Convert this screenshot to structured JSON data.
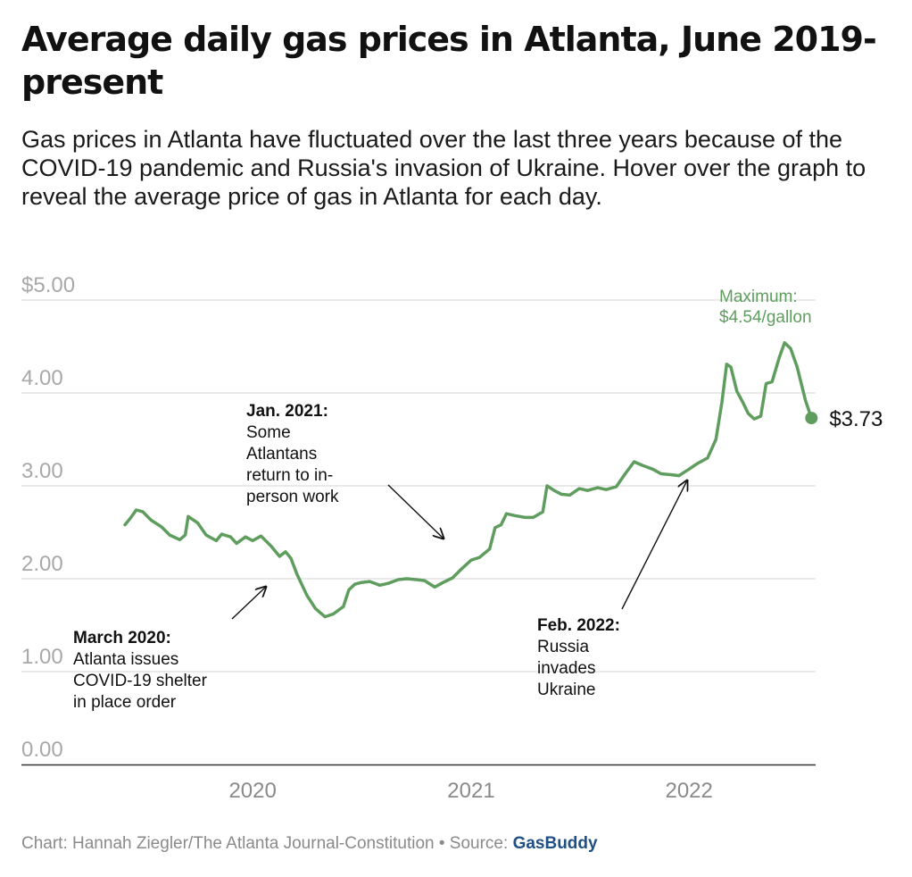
{
  "title": "Average daily gas prices in Atlanta, June 2019-present",
  "subtitle": "Gas prices in Atlanta have fluctuated over the last three years because of the COVID-19 pandemic and Russia's invasion of Ukraine. Hover over the graph to reveal the average price of gas in Atlanta for each day.",
  "footer": {
    "credit": "Chart: Hannah Ziegler/The Atlanta Journal-Constitution • Source: ",
    "source_link": "GasBuddy"
  },
  "colors": {
    "line": "#5f9d5f",
    "grid": "#e3e3e3",
    "axis": "#333333"
  },
  "chart_data": {
    "type": "line",
    "ylim": [
      0,
      5
    ],
    "yticks": [
      {
        "value": 5,
        "label": "$5.00"
      },
      {
        "value": 4,
        "label": "4.00"
      },
      {
        "value": 3,
        "label": "3.00"
      },
      {
        "value": 2,
        "label": "2.00"
      },
      {
        "value": 1,
        "label": "1.00"
      },
      {
        "value": 0,
        "label": "0.00"
      }
    ],
    "xlim": [
      "2019-06-01",
      "2022-08-01"
    ],
    "xticks": [
      {
        "date": "2020-01-01",
        "label": "2020"
      },
      {
        "date": "2021-01-01",
        "label": "2021"
      },
      {
        "date": "2022-01-01",
        "label": "2022"
      }
    ],
    "series": [
      {
        "values": [
          [
            "2019-06-01",
            2.58
          ],
          [
            "2019-06-10",
            2.65
          ],
          [
            "2019-06-20",
            2.74
          ],
          [
            "2019-07-01",
            2.72
          ],
          [
            "2019-07-15",
            2.63
          ],
          [
            "2019-08-01",
            2.56
          ],
          [
            "2019-08-15",
            2.47
          ],
          [
            "2019-09-01",
            2.42
          ],
          [
            "2019-09-10",
            2.47
          ],
          [
            "2019-09-15",
            2.67
          ],
          [
            "2019-10-01",
            2.6
          ],
          [
            "2019-10-15",
            2.47
          ],
          [
            "2019-11-01",
            2.41
          ],
          [
            "2019-11-10",
            2.48
          ],
          [
            "2019-11-25",
            2.45
          ],
          [
            "2019-12-05",
            2.38
          ],
          [
            "2019-12-20",
            2.45
          ],
          [
            "2020-01-01",
            2.41
          ],
          [
            "2020-01-15",
            2.46
          ],
          [
            "2020-02-01",
            2.35
          ],
          [
            "2020-02-15",
            2.24
          ],
          [
            "2020-02-25",
            2.29
          ],
          [
            "2020-03-05",
            2.22
          ],
          [
            "2020-03-15",
            2.05
          ],
          [
            "2020-04-01",
            1.82
          ],
          [
            "2020-04-15",
            1.68
          ],
          [
            "2020-05-01",
            1.59
          ],
          [
            "2020-05-15",
            1.62
          ],
          [
            "2020-06-01",
            1.7
          ],
          [
            "2020-06-10",
            1.88
          ],
          [
            "2020-06-20",
            1.94
          ],
          [
            "2020-07-01",
            1.96
          ],
          [
            "2020-07-15",
            1.97
          ],
          [
            "2020-08-01",
            1.93
          ],
          [
            "2020-08-15",
            1.95
          ],
          [
            "2020-09-01",
            1.99
          ],
          [
            "2020-09-15",
            2.0
          ],
          [
            "2020-10-01",
            1.99
          ],
          [
            "2020-10-15",
            1.98
          ],
          [
            "2020-11-01",
            1.91
          ],
          [
            "2020-11-15",
            1.96
          ],
          [
            "2020-12-01",
            2.01
          ],
          [
            "2020-12-15",
            2.1
          ],
          [
            "2021-01-01",
            2.2
          ],
          [
            "2021-01-15",
            2.23
          ],
          [
            "2021-02-01",
            2.32
          ],
          [
            "2021-02-10",
            2.55
          ],
          [
            "2021-02-20",
            2.58
          ],
          [
            "2021-03-01",
            2.7
          ],
          [
            "2021-03-15",
            2.68
          ],
          [
            "2021-04-01",
            2.66
          ],
          [
            "2021-04-15",
            2.66
          ],
          [
            "2021-05-01",
            2.72
          ],
          [
            "2021-05-08",
            3.0
          ],
          [
            "2021-05-20",
            2.95
          ],
          [
            "2021-06-01",
            2.91
          ],
          [
            "2021-06-15",
            2.9
          ],
          [
            "2021-07-01",
            2.97
          ],
          [
            "2021-07-15",
            2.95
          ],
          [
            "2021-08-01",
            2.98
          ],
          [
            "2021-08-15",
            2.96
          ],
          [
            "2021-09-01",
            2.99
          ],
          [
            "2021-09-15",
            3.12
          ],
          [
            "2021-10-01",
            3.26
          ],
          [
            "2021-10-15",
            3.22
          ],
          [
            "2021-11-01",
            3.18
          ],
          [
            "2021-11-15",
            3.13
          ],
          [
            "2021-12-01",
            3.12
          ],
          [
            "2021-12-15",
            3.11
          ],
          [
            "2022-01-01",
            3.18
          ],
          [
            "2022-01-15",
            3.24
          ],
          [
            "2022-02-01",
            3.3
          ],
          [
            "2022-02-15",
            3.5
          ],
          [
            "2022-02-25",
            3.9
          ],
          [
            "2022-03-05",
            4.31
          ],
          [
            "2022-03-12",
            4.28
          ],
          [
            "2022-03-22",
            4.02
          ],
          [
            "2022-04-01",
            3.9
          ],
          [
            "2022-04-10",
            3.78
          ],
          [
            "2022-04-20",
            3.72
          ],
          [
            "2022-05-01",
            3.75
          ],
          [
            "2022-05-10",
            4.1
          ],
          [
            "2022-05-20",
            4.12
          ],
          [
            "2022-06-01",
            4.38
          ],
          [
            "2022-06-10",
            4.54
          ],
          [
            "2022-06-20",
            4.48
          ],
          [
            "2022-07-01",
            4.28
          ],
          [
            "2022-07-15",
            3.92
          ],
          [
            "2022-07-25",
            3.73
          ]
        ]
      }
    ],
    "end_label": "$3.73",
    "max_annotation": [
      "Maximum:",
      "$4.54/gallon"
    ],
    "annotations": [
      {
        "heading": "March 2020:",
        "lines": [
          "Atlanta issues",
          "COVID-19 shelter",
          "in place order"
        ]
      },
      {
        "heading": "Jan. 2021:",
        "lines": [
          "Some",
          "Atlantans",
          "return to in-",
          "person work"
        ]
      },
      {
        "heading": "Feb. 2022:",
        "lines": [
          "Russia",
          "invades",
          "Ukraine"
        ]
      }
    ]
  }
}
